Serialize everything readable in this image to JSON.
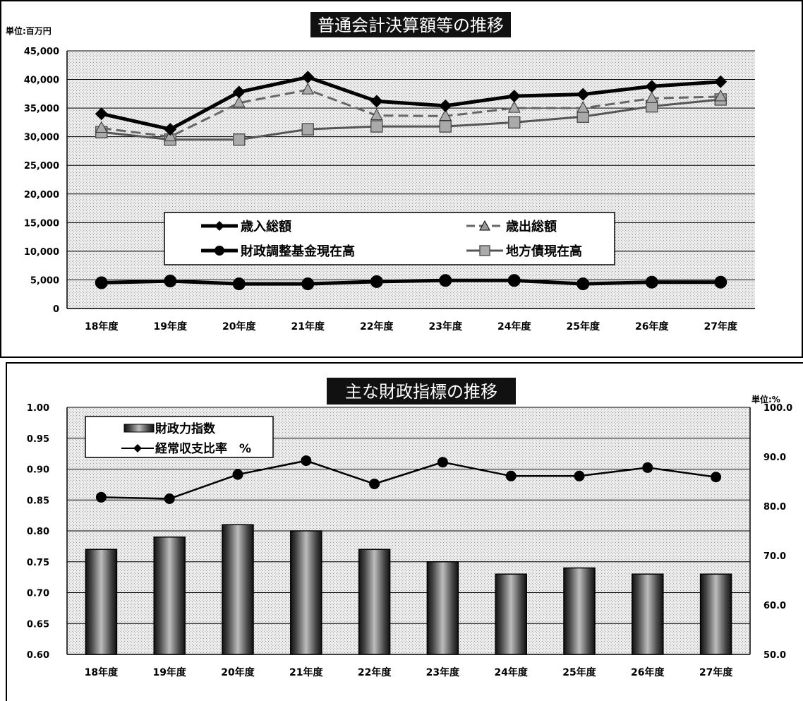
{
  "chart_data": [
    {
      "type": "line",
      "title": "普通会計決算額等の推移",
      "unit_label": "単位:百万円",
      "categories": [
        "18年度",
        "19年度",
        "20年度",
        "21年度",
        "22年度",
        "23年度",
        "24年度",
        "25年度",
        "26年度",
        "27年度"
      ],
      "yticks": [
        "0",
        "5,000",
        "10,000",
        "15,000",
        "20,000",
        "25,000",
        "30,000",
        "35,000",
        "40,000",
        "45,000"
      ],
      "ylim": [
        0,
        45000
      ],
      "grid": true,
      "legend_position": "center",
      "series": [
        {
          "name": "歳入総額",
          "marker": "diamond",
          "color": "#000000",
          "values": [
            34000,
            31300,
            37800,
            40400,
            36200,
            35400,
            37100,
            37400,
            38800,
            39600
          ]
        },
        {
          "name": "歳出総額",
          "marker": "triangle",
          "color": "#555555",
          "values": [
            31500,
            30000,
            35900,
            38200,
            33700,
            33600,
            35000,
            35000,
            36700,
            37000
          ]
        },
        {
          "name": "財政調整基金現在高",
          "marker": "circle",
          "color": "#000000",
          "values": [
            4500,
            4800,
            4300,
            4300,
            4700,
            4900,
            4900,
            4300,
            4600,
            4600
          ]
        },
        {
          "name": "地方債現在高",
          "marker": "square",
          "color": "#666666",
          "values": [
            30800,
            29500,
            29500,
            31300,
            31800,
            31800,
            32500,
            33500,
            35300,
            36500
          ]
        }
      ]
    },
    {
      "type": "bar+line",
      "title": "主な財政指標の推移",
      "unit_label": "単位:%",
      "categories": [
        "18年度",
        "19年度",
        "20年度",
        "21年度",
        "22年度",
        "23年度",
        "24年度",
        "25年度",
        "26年度",
        "27年度"
      ],
      "y_left_ticks": [
        "0.60",
        "0.65",
        "0.70",
        "0.75",
        "0.80",
        "0.85",
        "0.90",
        "0.95",
        "1.00"
      ],
      "y_left_lim": [
        0.6,
        1.0
      ],
      "y_right_ticks": [
        "50.0",
        "60.0",
        "70.0",
        "80.0",
        "90.0",
        "100.0"
      ],
      "y_right_lim": [
        50,
        100
      ],
      "grid": true,
      "legend_position": "top-left",
      "series": [
        {
          "name": "財政力指数",
          "kind": "bar",
          "axis": "left",
          "values": [
            0.77,
            0.79,
            0.81,
            0.8,
            0.77,
            0.75,
            0.73,
            0.74,
            0.73,
            0.73
          ]
        },
        {
          "name": "経常収支比率　%",
          "kind": "line",
          "axis": "right",
          "values": [
            81.8,
            81.5,
            86.4,
            89.2,
            84.5,
            88.9,
            86.1,
            86.1,
            87.8,
            85.9
          ]
        }
      ]
    }
  ]
}
